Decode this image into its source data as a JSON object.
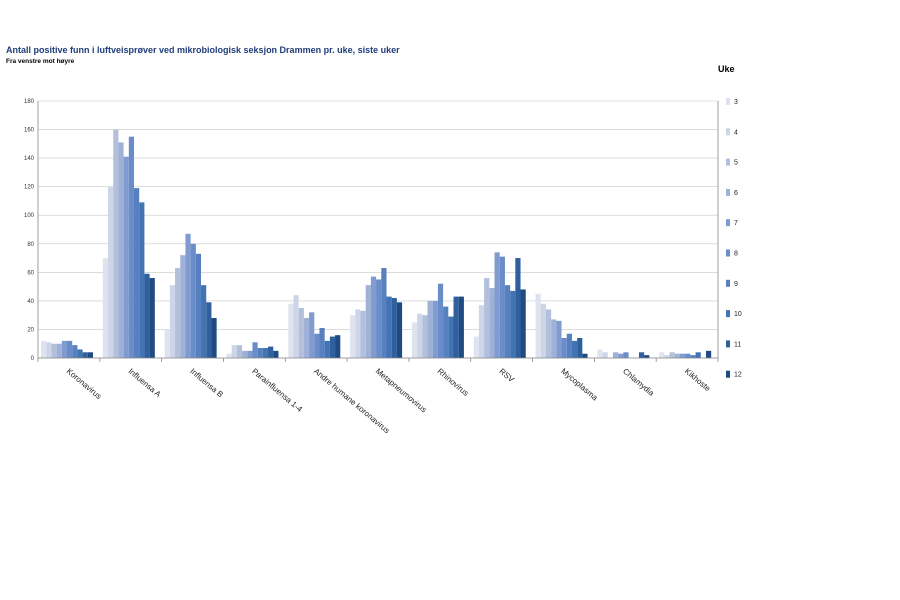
{
  "chart_data": {
    "type": "bar",
    "title": "Antall positive funn i luftveisprøver ved mikrobiologisk seksjon Drammen pr. uke, siste uker",
    "subtitle": "Fra venstre mot høyre",
    "legend_title": "Uke",
    "legend_position": "right",
    "ylim": [
      0,
      180
    ],
    "yticks": [
      0,
      20,
      40,
      60,
      80,
      100,
      120,
      140,
      160,
      180
    ],
    "grid": true,
    "categories": [
      "Koronavirus",
      "Influensa A",
      "Influensa B",
      "Parainfluensa 1-4",
      "Andre humane koronavirus",
      "Metapneumovirus",
      "Rhinovirus",
      "RSV",
      "Mycoplasma",
      "Chlamydia",
      "Kikhoste"
    ],
    "series": [
      {
        "name": "3",
        "color": "#dfe3ef",
        "values": [
          12,
          70,
          20,
          3,
          38,
          30,
          25,
          15,
          45,
          6,
          4
        ]
      },
      {
        "name": "4",
        "color": "#cdd5e8",
        "values": [
          11,
          120,
          51,
          9,
          44,
          34,
          31,
          37,
          38,
          4,
          2
        ]
      },
      {
        "name": "5",
        "color": "#b3c0dc",
        "values": [
          10,
          160,
          63,
          9,
          35,
          33,
          30,
          56,
          34,
          0,
          4
        ]
      },
      {
        "name": "6",
        "color": "#9fb1d6",
        "values": [
          10,
          151,
          72,
          5,
          28,
          51,
          40,
          49,
          27,
          4,
          3
        ]
      },
      {
        "name": "7",
        "color": "#7f9bd0",
        "values": [
          12,
          141,
          87,
          5,
          32,
          57,
          40,
          74,
          26,
          3,
          3
        ]
      },
      {
        "name": "8",
        "color": "#6a8cc8",
        "values": [
          12,
          155,
          80,
          11,
          17,
          55,
          52,
          71,
          14,
          4,
          3
        ]
      },
      {
        "name": "9",
        "color": "#5680bf",
        "values": [
          9,
          119,
          73,
          7,
          21,
          63,
          36,
          51,
          17,
          0,
          2
        ]
      },
      {
        "name": "10",
        "color": "#4273b2",
        "values": [
          6,
          109,
          51,
          7,
          12,
          43,
          29,
          47,
          12,
          0,
          4
        ]
      },
      {
        "name": "11",
        "color": "#2f5f9c",
        "values": [
          4,
          59,
          39,
          8,
          15,
          42,
          43,
          70,
          14,
          4,
          0
        ]
      },
      {
        "name": "12",
        "color": "#1f4a82",
        "values": [
          4,
          56,
          28,
          5,
          16,
          39,
          43,
          48,
          3,
          2,
          5
        ]
      }
    ]
  }
}
